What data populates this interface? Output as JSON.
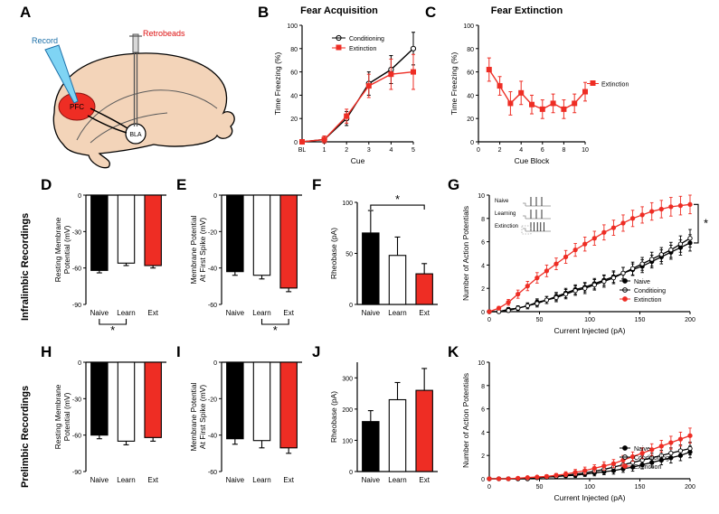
{
  "labels": {
    "A": "A",
    "B": "B",
    "C": "C",
    "D": "D",
    "E": "E",
    "F": "F",
    "G": "G",
    "H": "H",
    "I": "I",
    "J": "J",
    "K": "K"
  },
  "titles": {
    "B": "Fear Acquisition",
    "C": "Fear Extinction"
  },
  "sideLabels": {
    "IL": "Infralimbic Recordings",
    "PL": "Prelimbic Recordings"
  },
  "brain": {
    "record": "Record",
    "retrobeads": "Retrobeads",
    "pfc": "PFC",
    "bla": "BLA"
  },
  "categories": [
    "Naive",
    "Learn",
    "Ext"
  ],
  "catLong": [
    "Naive",
    "Learn",
    "Ext"
  ],
  "colors": {
    "naive": "#000000",
    "learn": "#ffffff",
    "ext": "#ee2d24",
    "axis": "#000000",
    "errorbar": "#000000"
  },
  "chartB": {
    "ylabel": "Time Freezing (%)",
    "xlabel": "Cue",
    "xticks": [
      "BL",
      "1",
      "2",
      "3",
      "4",
      "5"
    ],
    "yticks": [
      0,
      20,
      40,
      60,
      80,
      100
    ],
    "ylim": [
      0,
      100
    ],
    "series": [
      {
        "name": "Conditioning",
        "color": "#000000",
        "fill": "#ffffff",
        "marker": "circle",
        "y": [
          0,
          2,
          20,
          50,
          62,
          80
        ],
        "err": [
          0,
          3,
          6,
          10,
          12,
          14
        ]
      },
      {
        "name": "Extinction",
        "color": "#ee2d24",
        "fill": "#ee2d24",
        "marker": "square",
        "y": [
          0,
          2,
          22,
          48,
          58,
          60
        ],
        "err": [
          0,
          3,
          6,
          10,
          13,
          15
        ]
      }
    ]
  },
  "chartC": {
    "ylabel": "Time Freezing (%)",
    "xlabel": "Cue Block",
    "xticks": [
      0,
      2,
      4,
      6,
      8,
      10
    ],
    "yticks": [
      0,
      20,
      40,
      60,
      80,
      100
    ],
    "ylim": [
      0,
      100
    ],
    "series": [
      {
        "name": "Extinction",
        "color": "#ee2d24",
        "fill": "#ee2d24",
        "marker": "square",
        "x": [
          1,
          2,
          3,
          4,
          5,
          6,
          7,
          8,
          9,
          10
        ],
        "y": [
          62,
          48,
          33,
          42,
          32,
          28,
          33,
          28,
          33,
          43
        ],
        "err": [
          10,
          8,
          10,
          10,
          8,
          8,
          8,
          8,
          8,
          8
        ]
      }
    ]
  },
  "bars": {
    "D": {
      "ylabel": "Resting Membrane\nPotential (mV)",
      "ylim": [
        -90,
        0
      ],
      "yticks": [
        -90,
        -60,
        -30,
        0
      ],
      "values": [
        -62,
        -56,
        -58
      ],
      "err": [
        2,
        2,
        2
      ],
      "sig": {
        "between": [
          0,
          1
        ],
        "text": "*"
      }
    },
    "E": {
      "ylabel": "Membrane Potential\nAt First Spike (mV)",
      "ylim": [
        -60,
        0
      ],
      "yticks": [
        -60,
        -40,
        -20,
        0
      ],
      "values": [
        -42,
        -44,
        -51
      ],
      "err": [
        2,
        2,
        2
      ],
      "sig": {
        "between": [
          1,
          2
        ],
        "text": "*"
      }
    },
    "F": {
      "ylabel": "Rheobase (pA)",
      "ylim": [
        0,
        100
      ],
      "yticks": [
        0,
        50,
        100
      ],
      "values": [
        70,
        48,
        30
      ],
      "err": [
        22,
        18,
        10
      ],
      "sig": {
        "between": [
          0,
          2
        ],
        "text": "*"
      }
    },
    "H": {
      "ylabel": "Resting Membrane\nPotential (mV)",
      "ylim": [
        -90,
        0
      ],
      "yticks": [
        -90,
        -60,
        -30,
        0
      ],
      "values": [
        -60,
        -65,
        -62
      ],
      "err": [
        3,
        3,
        3
      ]
    },
    "I": {
      "ylabel": "Membrane Potential\nAt First Spike (mV)",
      "ylim": [
        -60,
        0
      ],
      "yticks": [
        -60,
        -40,
        -20,
        0
      ],
      "values": [
        -42,
        -43,
        -47
      ],
      "err": [
        3,
        4,
        3
      ]
    },
    "J": {
      "ylabel": "Rheobase (pA)",
      "ylim": [
        0,
        350
      ],
      "yticks": [
        0,
        100,
        200,
        300
      ],
      "values": [
        160,
        230,
        260
      ],
      "err": [
        35,
        55,
        70
      ]
    }
  },
  "curves": {
    "G": {
      "ylabel": "Number of Action Potentials",
      "xlabel": "Current Injected (pA)",
      "xlim": [
        0,
        200
      ],
      "ylim": [
        0,
        10
      ],
      "xticks": [
        0,
        50,
        100,
        150,
        200
      ],
      "yticks": [
        0,
        2,
        4,
        6,
        8,
        10
      ],
      "legendNames": [
        "Naive",
        "Conditioing",
        "Extinction"
      ],
      "inset": [
        "Naive",
        "Learning",
        "Extinction"
      ],
      "sig": "*",
      "series": [
        {
          "name": "Naive",
          "color": "#000000",
          "fill": "#000000",
          "y": [
            0,
            0,
            0.2,
            0.3,
            0.5,
            0.8,
            1.0,
            1.3,
            1.6,
            1.9,
            2.1,
            2.4,
            2.7,
            3.0,
            3.3,
            3.6,
            3.9,
            4.3,
            4.7,
            5.1,
            5.5,
            5.9
          ],
          "err": [
            0,
            0,
            0.15,
            0.2,
            0.25,
            0.3,
            0.3,
            0.35,
            0.4,
            0.4,
            0.4,
            0.45,
            0.45,
            0.5,
            0.5,
            0.5,
            0.55,
            0.55,
            0.6,
            0.6,
            0.65,
            0.7
          ]
        },
        {
          "name": "Conditioning",
          "color": "#000000",
          "fill": "#ffffff",
          "y": [
            0,
            0,
            0.1,
            0.3,
            0.5,
            0.7,
            1.0,
            1.2,
            1.5,
            1.8,
            2.0,
            2.3,
            2.6,
            2.9,
            3.3,
            3.7,
            4.1,
            4.5,
            4.9,
            5.3,
            5.8,
            6.3
          ],
          "err": [
            0,
            0,
            0.15,
            0.2,
            0.25,
            0.3,
            0.3,
            0.35,
            0.4,
            0.4,
            0.45,
            0.45,
            0.5,
            0.5,
            0.5,
            0.55,
            0.55,
            0.6,
            0.6,
            0.65,
            0.7,
            0.75
          ]
        },
        {
          "name": "Extinction",
          "color": "#ee2d24",
          "fill": "#ee2d24",
          "y": [
            0,
            0.3,
            0.8,
            1.5,
            2.2,
            2.9,
            3.5,
            4.1,
            4.7,
            5.3,
            5.8,
            6.3,
            6.8,
            7.2,
            7.6,
            8.0,
            8.3,
            8.6,
            8.8,
            9.0,
            9.1,
            9.2
          ],
          "err": [
            0,
            0.15,
            0.25,
            0.35,
            0.4,
            0.45,
            0.5,
            0.5,
            0.55,
            0.55,
            0.6,
            0.6,
            0.65,
            0.65,
            0.7,
            0.7,
            0.7,
            0.75,
            0.75,
            0.8,
            0.8,
            0.8
          ]
        }
      ]
    },
    "K": {
      "ylabel": "Number of Action Potentials",
      "xlabel": "Current Injected (pA)",
      "xlim": [
        0,
        200
      ],
      "ylim": [
        0,
        10
      ],
      "xticks": [
        0,
        50,
        100,
        150,
        200
      ],
      "yticks": [
        0,
        2,
        4,
        6,
        8,
        10
      ],
      "legendNames": [
        "Naive",
        "Conditioning",
        "Extinction"
      ],
      "series": [
        {
          "name": "Naive",
          "color": "#000000",
          "fill": "#000000",
          "y": [
            0,
            0,
            0,
            0,
            0,
            0.1,
            0.15,
            0.2,
            0.25,
            0.3,
            0.4,
            0.5,
            0.6,
            0.7,
            0.85,
            1.0,
            1.2,
            1.4,
            1.6,
            1.8,
            2.0,
            2.3
          ],
          "err": [
            0,
            0,
            0,
            0,
            0,
            0.1,
            0.1,
            0.15,
            0.15,
            0.2,
            0.2,
            0.25,
            0.25,
            0.3,
            0.3,
            0.35,
            0.35,
            0.4,
            0.4,
            0.45,
            0.45,
            0.5
          ]
        },
        {
          "name": "Conditioning",
          "color": "#000000",
          "fill": "#ffffff",
          "y": [
            0,
            0,
            0,
            0,
            0,
            0.1,
            0.15,
            0.2,
            0.3,
            0.4,
            0.5,
            0.65,
            0.8,
            1.0,
            1.2,
            1.4,
            1.6,
            1.8,
            2.0,
            2.2,
            2.4,
            2.6
          ],
          "err": [
            0,
            0,
            0,
            0,
            0,
            0.1,
            0.1,
            0.15,
            0.15,
            0.2,
            0.2,
            0.25,
            0.3,
            0.3,
            0.35,
            0.35,
            0.4,
            0.4,
            0.45,
            0.45,
            0.5,
            0.55
          ]
        },
        {
          "name": "Extinction",
          "color": "#ee2d24",
          "fill": "#ee2d24",
          "y": [
            0,
            0,
            0,
            0.05,
            0.1,
            0.15,
            0.2,
            0.3,
            0.4,
            0.55,
            0.7,
            0.9,
            1.1,
            1.3,
            1.6,
            1.9,
            2.2,
            2.5,
            2.8,
            3.1,
            3.4,
            3.7
          ],
          "err": [
            0,
            0,
            0,
            0.05,
            0.1,
            0.1,
            0.15,
            0.15,
            0.2,
            0.25,
            0.3,
            0.3,
            0.35,
            0.35,
            0.4,
            0.4,
            0.45,
            0.5,
            0.5,
            0.55,
            0.6,
            0.65
          ]
        }
      ]
    }
  }
}
